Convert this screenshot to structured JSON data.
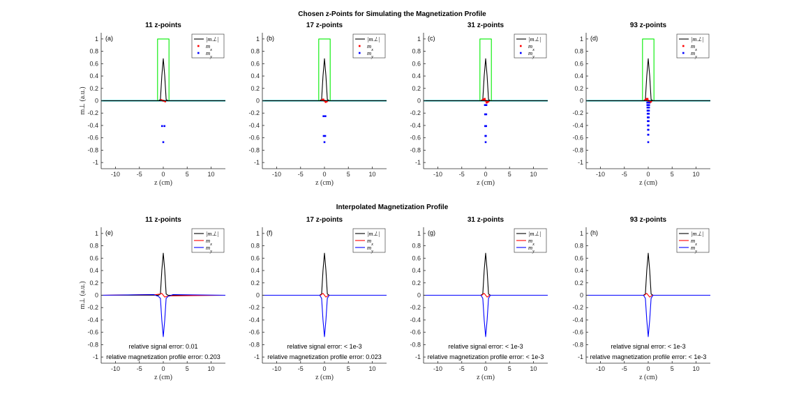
{
  "figure": {
    "suptitle_top": "Chosen z-Points for Simulating the Magnetization Profile",
    "suptitle_bottom": "Interpolated Magnetization Profile"
  },
  "colors": {
    "mperp": "#000000",
    "mx": "#ff0000",
    "my": "#0000ff",
    "box": "#00ee00",
    "axis": "#262626",
    "teal": "#00aaaa"
  },
  "chart_data": [
    {
      "type": "scatter",
      "panel": "(a)",
      "title": "11 z-points",
      "n": 11,
      "xlabel": "z (cm)",
      "ylabel": "m⊥ (a.u.)",
      "xlim": [
        -13,
        13
      ],
      "ylim": [
        -1.1,
        1.1
      ],
      "xticks": [
        -10,
        -5,
        0,
        5,
        10
      ],
      "yticks": [
        -1,
        -0.8,
        -0.6,
        -0.4,
        -0.2,
        0,
        0.2,
        0.4,
        0.6,
        0.8,
        1
      ],
      "legend": [
        "|m⊥|",
        "mx",
        "my"
      ],
      "legend_position": "top-right",
      "series": [
        {
          "name": "|m⊥|",
          "style": "line",
          "x": [
            -1.0,
            -0.6,
            -0.3,
            0,
            0.3,
            0.6,
            1.0
          ],
          "y": [
            0,
            0.02,
            0.4,
            0.68,
            0.4,
            0.02,
            0
          ]
        },
        {
          "name": "slab",
          "style": "line",
          "x": [
            -13,
            -1.2,
            -1.2,
            1.2,
            1.2,
            13
          ],
          "y": [
            0,
            0,
            1,
            1,
            0,
            0
          ]
        },
        {
          "name": "mx",
          "style": "marker",
          "x": [
            -0.4,
            0,
            0.4
          ],
          "y": [
            0.01,
            0,
            -0.01
          ]
        },
        {
          "name": "my",
          "style": "marker",
          "x": [
            -0.25,
            0,
            0.25
          ],
          "y": [
            -0.41,
            -0.67,
            -0.41
          ]
        }
      ]
    },
    {
      "type": "scatter",
      "panel": "(b)",
      "title": "17 z-points",
      "n": 17,
      "xlabel": "z (cm)",
      "xlim": [
        -13,
        13
      ],
      "ylim": [
        -1.1,
        1.1
      ],
      "xticks": [
        -10,
        -5,
        0,
        5,
        10
      ],
      "yticks": [
        -1,
        -0.8,
        -0.6,
        -0.4,
        -0.2,
        0,
        0.2,
        0.4,
        0.6,
        0.8,
        1
      ],
      "legend": [
        "|m⊥|",
        "mx",
        "my"
      ],
      "legend_position": "top-right",
      "series": [
        {
          "name": "|m⊥|",
          "style": "line",
          "x": [
            -1.0,
            -0.6,
            -0.3,
            0,
            0.3,
            0.6,
            1.0
          ],
          "y": [
            0,
            0.02,
            0.4,
            0.68,
            0.4,
            0.02,
            0
          ]
        },
        {
          "name": "slab",
          "style": "line",
          "x": [
            -13,
            -1.2,
            -1.2,
            1.2,
            1.2,
            13
          ],
          "y": [
            0,
            0,
            1,
            1,
            0,
            0
          ]
        },
        {
          "name": "mx",
          "style": "marker",
          "x": [
            -0.5,
            -0.25,
            0,
            0.25,
            0.5
          ],
          "y": [
            0.01,
            0.02,
            0,
            -0.02,
            -0.01
          ]
        },
        {
          "name": "my",
          "style": "marker",
          "x": [
            -0.2,
            0.2,
            -0.15,
            0.15,
            0
          ],
          "y": [
            -0.25,
            -0.25,
            -0.57,
            -0.57,
            -0.67
          ]
        }
      ]
    },
    {
      "type": "scatter",
      "panel": "(c)",
      "title": "31 z-points",
      "n": 31,
      "xlabel": "z (cm)",
      "xlim": [
        -13,
        13
      ],
      "ylim": [
        -1.1,
        1.1
      ],
      "xticks": [
        -10,
        -5,
        0,
        5,
        10
      ],
      "yticks": [
        -1,
        -0.8,
        -0.6,
        -0.4,
        -0.2,
        0,
        0.2,
        0.4,
        0.6,
        0.8,
        1
      ],
      "legend": [
        "|m⊥|",
        "mx",
        "my"
      ],
      "legend_position": "top-right",
      "series": [
        {
          "name": "|m⊥|",
          "style": "line",
          "x": [
            -1.0,
            -0.6,
            -0.3,
            0,
            0.3,
            0.6,
            1.0
          ],
          "y": [
            0,
            0.02,
            0.4,
            0.68,
            0.4,
            0.02,
            0
          ]
        },
        {
          "name": "slab",
          "style": "line",
          "x": [
            -13,
            -1.2,
            -1.2,
            1.2,
            1.2,
            13
          ],
          "y": [
            0,
            0,
            1,
            1,
            0,
            0
          ]
        },
        {
          "name": "mx",
          "style": "marker",
          "x": [
            -0.6,
            -0.4,
            -0.2,
            0,
            0.2,
            0.4,
            0.6
          ],
          "y": [
            0.01,
            0.02,
            0.03,
            0,
            -0.03,
            -0.02,
            -0.01
          ]
        },
        {
          "name": "my",
          "style": "marker",
          "x": [
            -0.15,
            0.15,
            -0.12,
            0.12,
            -0.1,
            0.1,
            -0.05,
            0.05,
            0
          ],
          "y": [
            -0.07,
            -0.07,
            -0.22,
            -0.22,
            -0.41,
            -0.41,
            -0.57,
            -0.57,
            -0.67
          ]
        }
      ]
    },
    {
      "type": "scatter",
      "panel": "(d)",
      "title": "93 z-points",
      "n": 93,
      "xlabel": "z (cm)",
      "xlim": [
        -13,
        13
      ],
      "ylim": [
        -1.1,
        1.1
      ],
      "xticks": [
        -10,
        -5,
        0,
        5,
        10
      ],
      "yticks": [
        -1,
        -0.8,
        -0.6,
        -0.4,
        -0.2,
        0,
        0.2,
        0.4,
        0.6,
        0.8,
        1
      ],
      "legend": [
        "|m⊥|",
        "mx",
        "my"
      ],
      "legend_position": "top-right",
      "series": [
        {
          "name": "|m⊥|",
          "style": "line",
          "x": [
            -1.0,
            -0.6,
            -0.3,
            0,
            0.3,
            0.6,
            1.0
          ],
          "y": [
            0,
            0.02,
            0.4,
            0.68,
            0.4,
            0.02,
            0
          ]
        },
        {
          "name": "slab",
          "style": "line",
          "x": [
            -13,
            -1.2,
            -1.2,
            1.2,
            1.2,
            13
          ],
          "y": [
            0,
            0,
            1,
            1,
            0,
            0
          ]
        },
        {
          "name": "mx",
          "style": "marker",
          "x": [
            -0.6,
            -0.45,
            -0.3,
            -0.15,
            0,
            0.15,
            0.3,
            0.45,
            0.6
          ],
          "y": [
            0.01,
            0.02,
            0.03,
            0.03,
            0,
            -0.03,
            -0.03,
            -0.02,
            -0.01
          ]
        },
        {
          "name": "my",
          "style": "marker",
          "x": [
            -0.2,
            0.2,
            -0.18,
            0.18,
            -0.16,
            0.16,
            -0.14,
            0.14,
            -0.12,
            0.12,
            -0.1,
            0.1,
            -0.08,
            0.08,
            -0.06,
            0.06,
            -0.04,
            0.04,
            -0.02,
            0.02,
            0
          ],
          "y": [
            -0.03,
            -0.03,
            -0.07,
            -0.07,
            -0.11,
            -0.11,
            -0.16,
            -0.16,
            -0.21,
            -0.21,
            -0.27,
            -0.27,
            -0.33,
            -0.33,
            -0.4,
            -0.4,
            -0.47,
            -0.47,
            -0.55,
            -0.55,
            -0.67
          ]
        }
      ]
    },
    {
      "type": "line",
      "panel": "(e)",
      "title": "11 z-points",
      "n": 11,
      "xlabel": "z (cm)",
      "ylabel": "m⊥ (a.u.)",
      "xlim": [
        -13,
        13
      ],
      "ylim": [
        -1.1,
        1.1
      ],
      "xticks": [
        -10,
        -5,
        0,
        5,
        10
      ],
      "yticks": [
        -1,
        -0.8,
        -0.6,
        -0.4,
        -0.2,
        0,
        0.2,
        0.4,
        0.6,
        0.8,
        1
      ],
      "legend": [
        "|m⊥|",
        "mx",
        "my"
      ],
      "legend_position": "top-right",
      "annotation": [
        "relative signal error: 0.01",
        "relative magnetization profile error: 0.203"
      ],
      "series": [
        {
          "name": "|m⊥|",
          "x": [
            -13,
            -1.0,
            -0.6,
            -0.3,
            0,
            0.3,
            0.6,
            1.0,
            13
          ],
          "y": [
            0,
            0,
            0.02,
            0.4,
            0.68,
            0.4,
            0.02,
            0,
            0
          ]
        },
        {
          "name": "mx",
          "x": [
            -13,
            -1.5,
            -0.6,
            -0.3,
            0,
            0.3,
            0.6,
            1.5,
            13
          ],
          "y": [
            0,
            0.01,
            0.02,
            0.03,
            0,
            -0.03,
            -0.02,
            -0.01,
            0
          ]
        },
        {
          "name": "my",
          "x": [
            -13,
            -2.0,
            -1.0,
            -0.6,
            -0.3,
            0,
            0.3,
            0.6,
            1.0,
            2.0,
            13
          ],
          "y": [
            0,
            0.01,
            -0.02,
            -0.05,
            -0.4,
            -0.67,
            -0.4,
            -0.05,
            -0.02,
            0.01,
            0
          ]
        }
      ]
    },
    {
      "type": "line",
      "panel": "(f)",
      "title": "17 z-points",
      "n": 17,
      "xlabel": "z (cm)",
      "xlim": [
        -13,
        13
      ],
      "ylim": [
        -1.1,
        1.1
      ],
      "xticks": [
        -10,
        -5,
        0,
        5,
        10
      ],
      "yticks": [
        -1,
        -0.8,
        -0.6,
        -0.4,
        -0.2,
        0,
        0.2,
        0.4,
        0.6,
        0.8,
        1
      ],
      "legend": [
        "|m⊥|",
        "mx",
        "my"
      ],
      "legend_position": "top-right",
      "annotation": [
        "relative signal error: < 1e-3",
        "relative magnetization profile error: 0.023"
      ],
      "series": [
        {
          "name": "|m⊥|",
          "x": [
            -13,
            -1.0,
            -0.6,
            -0.3,
            0,
            0.3,
            0.6,
            1.0,
            13
          ],
          "y": [
            0,
            0,
            0.02,
            0.4,
            0.68,
            0.4,
            0.02,
            0,
            0
          ]
        },
        {
          "name": "mx",
          "x": [
            -13,
            -0.8,
            -0.5,
            -0.3,
            0,
            0.3,
            0.5,
            0.8,
            13
          ],
          "y": [
            0,
            0,
            0.02,
            0.03,
            0,
            -0.03,
            -0.02,
            0,
            0
          ]
        },
        {
          "name": "my",
          "x": [
            -13,
            -1.0,
            -0.6,
            -0.3,
            0,
            0.3,
            0.6,
            1.0,
            13
          ],
          "y": [
            0,
            0,
            -0.05,
            -0.4,
            -0.67,
            -0.4,
            -0.05,
            0,
            0
          ]
        }
      ]
    },
    {
      "type": "line",
      "panel": "(g)",
      "title": "31 z-points",
      "n": 31,
      "xlabel": "z (cm)",
      "xlim": [
        -13,
        13
      ],
      "ylim": [
        -1.1,
        1.1
      ],
      "xticks": [
        -10,
        -5,
        0,
        5,
        10
      ],
      "yticks": [
        -1,
        -0.8,
        -0.6,
        -0.4,
        -0.2,
        0,
        0.2,
        0.4,
        0.6,
        0.8,
        1
      ],
      "legend": [
        "|m⊥|",
        "mx",
        "my"
      ],
      "legend_position": "top-right",
      "annotation": [
        "relative signal error: < 1e-3",
        "relative magnetization profile error: < 1e-3"
      ],
      "series": [
        {
          "name": "|m⊥|",
          "x": [
            -13,
            -1.0,
            -0.6,
            -0.3,
            0,
            0.3,
            0.6,
            1.0,
            13
          ],
          "y": [
            0,
            0,
            0.02,
            0.4,
            0.68,
            0.4,
            0.02,
            0,
            0
          ]
        },
        {
          "name": "mx",
          "x": [
            -13,
            -0.8,
            -0.5,
            -0.3,
            0,
            0.3,
            0.5,
            0.8,
            13
          ],
          "y": [
            0,
            0,
            0.02,
            0.03,
            0,
            -0.03,
            -0.02,
            0,
            0
          ]
        },
        {
          "name": "my",
          "x": [
            -13,
            -1.0,
            -0.6,
            -0.3,
            0,
            0.3,
            0.6,
            1.0,
            13
          ],
          "y": [
            0,
            0,
            -0.05,
            -0.4,
            -0.67,
            -0.4,
            -0.05,
            0,
            0
          ]
        }
      ]
    },
    {
      "type": "line",
      "panel": "(h)",
      "title": "93 z-points",
      "n": 93,
      "xlabel": "z (cm)",
      "xlim": [
        -13,
        13
      ],
      "ylim": [
        -1.1,
        1.1
      ],
      "xticks": [
        -10,
        -5,
        0,
        5,
        10
      ],
      "yticks": [
        -1,
        -0.8,
        -0.6,
        -0.4,
        -0.2,
        0,
        0.2,
        0.4,
        0.6,
        0.8,
        1
      ],
      "legend": [
        "|m⊥|",
        "mx",
        "my"
      ],
      "legend_position": "top-right",
      "annotation": [
        "relative signal error: < 1e-3",
        "relative magnetization profile error: < 1e-3"
      ],
      "series": [
        {
          "name": "|m⊥|",
          "x": [
            -13,
            -1.0,
            -0.6,
            -0.3,
            0,
            0.3,
            0.6,
            1.0,
            13
          ],
          "y": [
            0,
            0,
            0.02,
            0.4,
            0.68,
            0.4,
            0.02,
            0,
            0
          ]
        },
        {
          "name": "mx",
          "x": [
            -13,
            -0.8,
            -0.5,
            -0.3,
            0,
            0.3,
            0.5,
            0.8,
            13
          ],
          "y": [
            0,
            0,
            0.02,
            0.03,
            0,
            -0.03,
            -0.02,
            0,
            0
          ]
        },
        {
          "name": "my",
          "x": [
            -13,
            -1.0,
            -0.6,
            -0.3,
            0,
            0.3,
            0.6,
            1.0,
            13
          ],
          "y": [
            0,
            0,
            -0.05,
            -0.4,
            -0.67,
            -0.4,
            -0.05,
            0,
            0
          ]
        }
      ]
    }
  ]
}
